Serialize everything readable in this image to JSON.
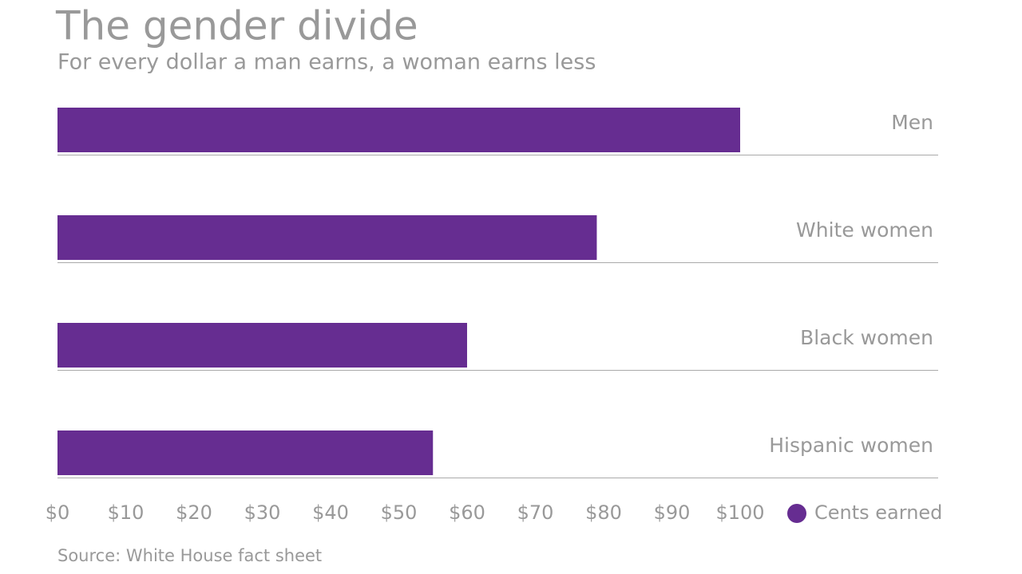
{
  "chart_data": {
    "type": "bar",
    "title": "The gender divide",
    "subtitle": "For every dollar a man earns, a woman earns less",
    "categories": [
      "Men",
      "White women",
      "Black women",
      "Hispanic women"
    ],
    "series": [
      {
        "name": "Cents earned",
        "color": "#662d91",
        "values": [
          100,
          79,
          60,
          55
        ]
      }
    ],
    "xlim": [
      0,
      100
    ],
    "xticks": [
      {
        "value": 0,
        "label": "$0"
      },
      {
        "value": 10,
        "label": "$10"
      },
      {
        "value": 20,
        "label": "$20"
      },
      {
        "value": 30,
        "label": "$30"
      },
      {
        "value": 40,
        "label": "$40"
      },
      {
        "value": 50,
        "label": "$50"
      },
      {
        "value": 60,
        "label": "$60"
      },
      {
        "value": 70,
        "label": "$70"
      },
      {
        "value": 80,
        "label": "$80"
      },
      {
        "value": 90,
        "label": "$90"
      },
      {
        "value": 100,
        "label": "$100"
      }
    ],
    "grid": false,
    "source": "Source: White House fact sheet"
  }
}
